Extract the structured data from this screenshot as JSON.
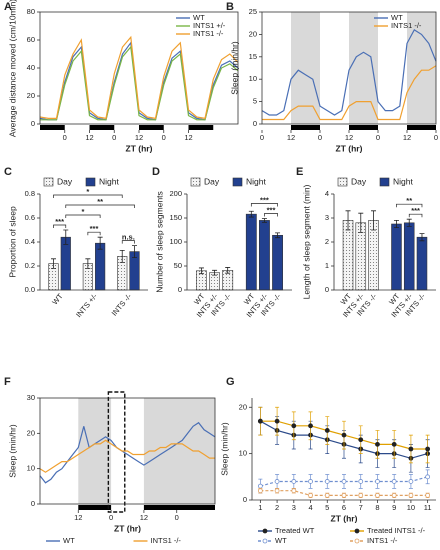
{
  "chart_data": [
    {
      "panel": "A",
      "type": "line",
      "ylabel": "Average distance moved (cm/10min)",
      "xlabel": "ZT (hr)",
      "x": [
        0,
        4,
        8,
        12,
        16,
        20,
        24,
        28,
        32,
        36,
        40,
        44,
        48,
        52,
        56,
        60,
        64,
        68,
        72,
        76,
        80,
        84,
        88,
        92,
        96
      ],
      "xlim": [
        0,
        96
      ],
      "xticks": [
        {
          "value": 12,
          "label": "0"
        },
        {
          "value": 24,
          "label": "12"
        },
        {
          "value": 36,
          "label": "0"
        },
        {
          "value": 48,
          "label": "12"
        },
        {
          "value": 60,
          "label": "0"
        },
        {
          "value": 72,
          "label": "12"
        }
      ],
      "ylim": [
        0,
        80
      ],
      "yticks": [
        0,
        20,
        40,
        60,
        80
      ],
      "dark_periods": [
        [
          0,
          12
        ],
        [
          24,
          36
        ],
        [
          48,
          60
        ],
        [
          72,
          84
        ]
      ],
      "shading": false,
      "frame": true,
      "legend": "top-right",
      "series": [
        {
          "name": "WT",
          "color": "#4a6fb5",
          "values": [
            4,
            3,
            3,
            30,
            48,
            55,
            8,
            4,
            3,
            30,
            50,
            58,
            8,
            4,
            3,
            30,
            47,
            52,
            8,
            4,
            3,
            28,
            42,
            45,
            40
          ]
        },
        {
          "name": "INTS1 +/-",
          "color": "#7ab648",
          "values": [
            3,
            3,
            3,
            28,
            45,
            52,
            6,
            3,
            3,
            28,
            48,
            55,
            6,
            3,
            3,
            28,
            45,
            50,
            6,
            3,
            3,
            26,
            40,
            43,
            38
          ]
        },
        {
          "name": "INTS1 -/-",
          "color": "#f0a030",
          "values": [
            5,
            4,
            4,
            35,
            50,
            60,
            10,
            5,
            4,
            36,
            55,
            62,
            10,
            5,
            4,
            34,
            52,
            58,
            10,
            5,
            4,
            32,
            46,
            50,
            44
          ]
        }
      ]
    },
    {
      "panel": "B",
      "type": "line",
      "ylabel": "Sleep (min/hr)",
      "xlabel": "ZT (hr)",
      "x": [
        0,
        3,
        6,
        9,
        12,
        15,
        18,
        21,
        24,
        27,
        30,
        33,
        36,
        39,
        42,
        45,
        48,
        51,
        54,
        57,
        60,
        63,
        66,
        69,
        72
      ],
      "xlim": [
        0,
        72
      ],
      "xticks": [
        {
          "value": 0,
          "label": "0"
        },
        {
          "value": 12,
          "label": "12"
        },
        {
          "value": 24,
          "label": "0"
        },
        {
          "value": 36,
          "label": "12"
        },
        {
          "value": 48,
          "label": "0"
        },
        {
          "value": 60,
          "label": "12"
        },
        {
          "value": 72,
          "label": "0"
        }
      ],
      "ylim": [
        0,
        25
      ],
      "yticks": [
        0,
        5,
        10,
        15,
        20,
        25
      ],
      "dark_periods": [
        [
          12,
          24
        ],
        [
          36,
          48
        ],
        [
          60,
          72
        ]
      ],
      "shading": true,
      "frame": true,
      "legend": "top-right",
      "series": [
        {
          "name": "WT",
          "color": "#4a6fb5",
          "values": [
            3,
            2,
            2,
            3,
            10,
            12,
            11,
            10,
            4,
            3,
            2,
            3,
            12,
            15,
            16,
            15,
            5,
            3,
            3,
            4,
            18,
            21,
            20,
            18,
            14
          ]
        },
        {
          "name": "INTS1 -/-",
          "color": "#f0a030",
          "values": [
            1,
            1,
            1,
            1,
            3,
            4,
            4,
            4,
            1,
            1,
            1,
            1,
            4,
            5,
            5,
            5,
            1,
            1,
            1,
            1,
            7,
            10,
            12,
            12,
            13
          ]
        }
      ]
    },
    {
      "panel": "C",
      "type": "bar",
      "ylabel": "Proportion of sleep",
      "categories": [
        "WT",
        "INTS +/-",
        "INTS -/-"
      ],
      "grouping": "by-category",
      "ylim": [
        0,
        0.8
      ],
      "yticks": [
        {
          "value": 0,
          "label": "0.0"
        },
        0.2,
        0.4,
        0.6,
        0.8
      ],
      "frame": false,
      "legend": "top",
      "series": [
        {
          "name": "Day",
          "color": "#f2f2f2",
          "pattern": "dotted",
          "values": [
            0.22,
            0.22,
            0.28
          ],
          "errors": [
            0.04,
            0.04,
            0.05
          ]
        },
        {
          "name": "Night",
          "color": "#22408f",
          "pattern": "solid",
          "values": [
            0.44,
            0.39,
            0.32
          ],
          "errors": [
            0.06,
            0.05,
            0.05
          ]
        }
      ],
      "annotations": [
        {
          "text": "***",
          "from": [
            0,
            0
          ],
          "to": [
            1,
            0
          ]
        },
        {
          "text": "***",
          "from": [
            0,
            1
          ],
          "to": [
            1,
            1
          ]
        },
        {
          "text": "n.s.",
          "from": [
            0,
            2
          ],
          "to": [
            1,
            2
          ]
        },
        {
          "text": "*",
          "from": [
            1,
            0
          ],
          "to": [
            1,
            1
          ]
        },
        {
          "text": "**",
          "from": [
            1,
            0
          ],
          "to": [
            1,
            2
          ]
        },
        {
          "text": "*",
          "from": [
            0,
            0
          ],
          "to": [
            0,
            2
          ]
        }
      ]
    },
    {
      "panel": "D",
      "type": "bar",
      "ylabel": "Number of sleep segments",
      "categories": [
        "WT",
        "INTS +/-",
        "INTS -/-"
      ],
      "grouping": "by-series",
      "ylim": [
        0,
        200
      ],
      "yticks": [
        0,
        50,
        100,
        150,
        200
      ],
      "frame": false,
      "legend": "top",
      "series": [
        {
          "name": "Day",
          "color": "#f2f2f2",
          "pattern": "dotted",
          "values": [
            40,
            36,
            41
          ],
          "errors": [
            6,
            5,
            6
          ]
        },
        {
          "name": "Night",
          "color": "#22408f",
          "pattern": "solid",
          "values": [
            158,
            145,
            114
          ],
          "errors": [
            6,
            4,
            5
          ]
        }
      ],
      "annotations": [
        {
          "text": "***",
          "from": [
            1,
            1
          ],
          "to": [
            1,
            2
          ]
        },
        {
          "text": "***",
          "from": [
            1,
            0
          ],
          "to": [
            1,
            2
          ]
        }
      ]
    },
    {
      "panel": "E",
      "type": "bar",
      "ylabel": "Length of sleep segment (min)",
      "categories": [
        "WT",
        "INTS +/-",
        "INTS -/-"
      ],
      "grouping": "by-series",
      "ylim": [
        0,
        4
      ],
      "yticks": [
        0,
        1,
        2,
        3,
        4
      ],
      "frame": false,
      "legend": "top",
      "series": [
        {
          "name": "Day",
          "color": "#f2f2f2",
          "pattern": "dotted",
          "values": [
            2.9,
            2.8,
            2.9
          ],
          "errors": [
            0.4,
            0.4,
            0.4
          ]
        },
        {
          "name": "Night",
          "color": "#22408f",
          "pattern": "solid",
          "values": [
            2.75,
            2.8,
            2.2
          ],
          "errors": [
            0.15,
            0.15,
            0.15
          ]
        }
      ],
      "annotations": [
        {
          "text": "***",
          "from": [
            1,
            1
          ],
          "to": [
            1,
            2
          ]
        },
        {
          "text": "**",
          "from": [
            1,
            0
          ],
          "to": [
            1,
            2
          ]
        }
      ]
    },
    {
      "panel": "F",
      "type": "line",
      "ylabel": "Sleep (min/hr)",
      "xlabel": "ZT (hr)",
      "x": [
        0,
        2,
        4,
        6,
        8,
        10,
        12,
        14,
        16,
        18,
        20,
        22,
        24,
        26,
        28,
        30,
        32,
        34,
        36,
        38,
        40,
        42,
        44,
        46,
        48,
        50,
        52,
        54,
        56,
        58,
        60,
        62,
        64
      ],
      "xlim": [
        0,
        64
      ],
      "xticks": [
        {
          "value": 14,
          "label": "12"
        },
        {
          "value": 26,
          "label": "0"
        },
        {
          "value": 38,
          "label": "12"
        },
        {
          "value": 50,
          "label": "0"
        }
      ],
      "ylim": [
        0,
        30
      ],
      "yticks": [
        0,
        10,
        20,
        30
      ],
      "dark_periods": [
        [
          14,
          26
        ],
        [
          38,
          64
        ]
      ],
      "shading": true,
      "frame": true,
      "legend": "bottom",
      "highlight": [
        25,
        31
      ],
      "series": [
        {
          "name": "WT",
          "color": "#4a6fb5",
          "values": [
            8,
            6,
            7,
            9,
            10,
            12,
            14,
            16,
            22,
            16,
            17,
            18,
            19,
            18,
            16,
            15,
            14,
            13,
            12,
            11,
            12,
            13,
            14,
            15,
            16,
            17,
            18,
            20,
            22,
            23,
            21,
            20,
            19
          ]
        },
        {
          "name": "INTS1 -/-",
          "color": "#f0a030",
          "values": [
            10,
            9,
            10,
            11,
            12,
            12,
            13,
            14,
            15,
            16,
            17,
            17,
            18,
            17,
            16,
            15,
            15,
            14,
            14,
            14,
            15,
            15,
            16,
            16,
            17,
            17,
            17,
            16,
            15,
            15,
            14,
            13,
            13
          ]
        }
      ]
    },
    {
      "panel": "G",
      "type": "line",
      "ylabel": "Sleep (min/hr)",
      "xlabel": "ZT (hr)",
      "x": [
        1,
        2,
        3,
        4,
        5,
        6,
        7,
        8,
        9,
        10,
        11
      ],
      "xlim": [
        0.5,
        11.5
      ],
      "xticks": [
        1,
        2,
        3,
        4,
        5,
        6,
        7,
        8,
        9,
        10,
        11
      ],
      "ylim": [
        0,
        22
      ],
      "yticks": [
        0,
        10,
        20
      ],
      "shading": false,
      "frame": false,
      "legend": "bottom",
      "series": [
        {
          "name": "Treated WT",
          "color": "#2b4a8a",
          "marker": "filled",
          "dash": false,
          "values": [
            17,
            15,
            14,
            14,
            13,
            12,
            11,
            10,
            10,
            9,
            10
          ],
          "errors": [
            3,
            3,
            3,
            3,
            3,
            3,
            3,
            3,
            3,
            3,
            3
          ]
        },
        {
          "name": "Treated INTS1 -/-",
          "color": "#e0a000",
          "marker": "filled",
          "dash": false,
          "values": [
            17,
            17,
            16,
            16,
            15,
            14,
            13,
            12,
            12,
            11,
            11
          ],
          "errors": [
            3,
            3,
            3,
            3,
            3,
            3,
            3,
            3,
            3,
            3,
            3
          ]
        },
        {
          "name": "WT",
          "color": "#7090d0",
          "marker": "open",
          "dash": true,
          "values": [
            3,
            4,
            4,
            4,
            4,
            4,
            4,
            4,
            4,
            4,
            5
          ],
          "errors": [
            1.5,
            1.5,
            1.5,
            1.5,
            1.5,
            1.5,
            1.5,
            1.5,
            1.5,
            1.5,
            1.5
          ]
        },
        {
          "name": "INTS1 -/-",
          "color": "#e0a060",
          "marker": "open",
          "dash": true,
          "values": [
            2,
            2,
            2,
            1,
            1,
            1,
            1,
            1,
            1,
            1,
            1
          ],
          "errors": [
            0.5,
            0.5,
            0.5,
            0.5,
            0.5,
            0.5,
            0.5,
            0.5,
            0.5,
            0.5,
            0.5
          ]
        }
      ]
    }
  ]
}
